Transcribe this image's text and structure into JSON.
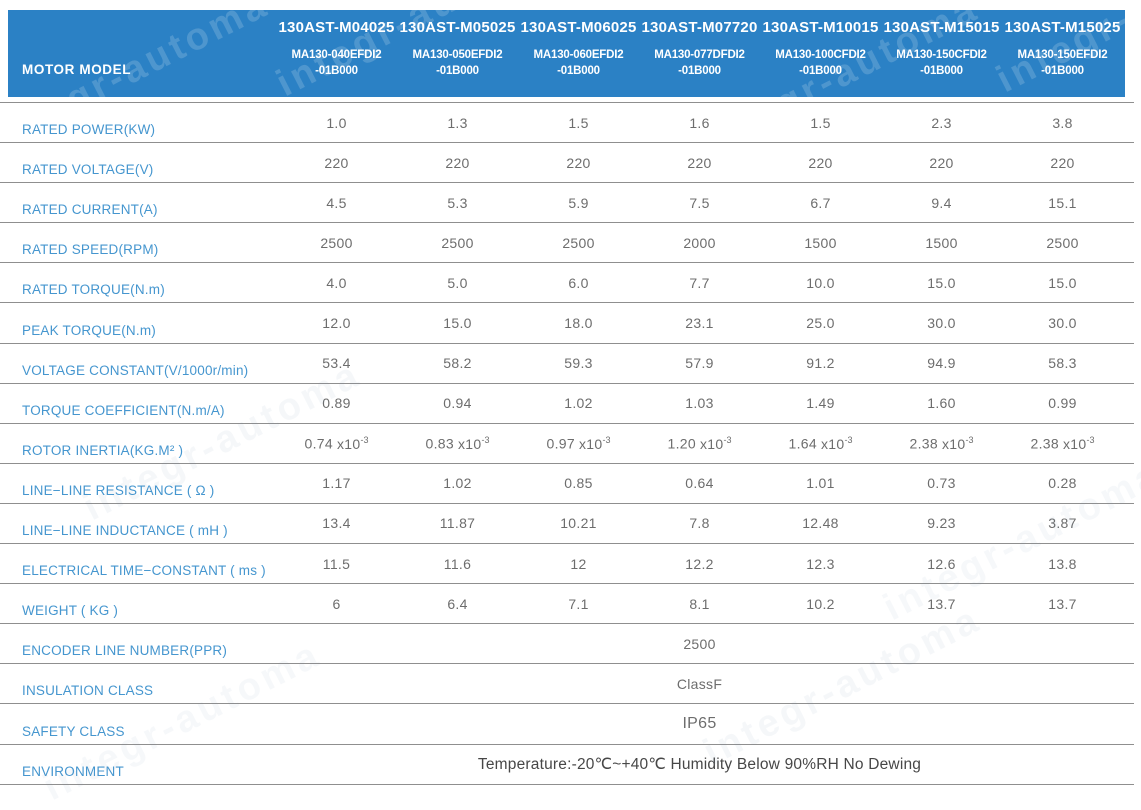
{
  "watermark": {
    "text": "integr-automa"
  },
  "colors": {
    "header_bg": "#2b81c5",
    "header_text": "#ffffff",
    "label_text": "#4596cf",
    "value_text": "#6d6d6d",
    "grid_line": "#8f8f8f"
  },
  "header": {
    "row_label": "MOTOR MODEL",
    "columns": [
      {
        "model": "130AST-M04025",
        "sub1": "MA130-040EFDI2",
        "sub2": "-01B000"
      },
      {
        "model": "130AST-M05025",
        "sub1": "MA130-050EFDI2",
        "sub2": "-01B000"
      },
      {
        "model": "130AST-M06025",
        "sub1": "MA130-060EFDI2",
        "sub2": "-01B000"
      },
      {
        "model": "130AST-M07720",
        "sub1": "MA130-077DFDI2",
        "sub2": "-01B000"
      },
      {
        "model": "130AST-M10015",
        "sub1": "MA130-100CFDI2",
        "sub2": "-01B000"
      },
      {
        "model": "130AST-M15015",
        "sub1": "MA130-150CFDI2",
        "sub2": "-01B000"
      },
      {
        "model": "130AST-M15025",
        "sub1": "MA130-150EFDI2",
        "sub2": "-01B000"
      }
    ]
  },
  "rows": [
    {
      "label": "RATED POWER(KW)",
      "values": [
        "1.0",
        "1.3",
        "1.5",
        "1.6",
        "1.5",
        "2.3",
        "3.8"
      ]
    },
    {
      "label": "RATED VOLTAGE(V)",
      "values": [
        "220",
        "220",
        "220",
        "220",
        "220",
        "220",
        "220"
      ]
    },
    {
      "label": "RATED CURRENT(A)",
      "values": [
        "4.5",
        "5.3",
        "5.9",
        "7.5",
        "6.7",
        "9.4",
        "15.1"
      ]
    },
    {
      "label": "RATED SPEED(RPM)",
      "values": [
        "2500",
        "2500",
        "2500",
        "2000",
        "1500",
        "1500",
        "2500"
      ]
    },
    {
      "label": "RATED TORQUE(N.m)",
      "values": [
        "4.0",
        "5.0",
        "6.0",
        "7.7",
        "10.0",
        "15.0",
        "15.0"
      ]
    },
    {
      "label": "PEAK TORQUE(N.m)",
      "values": [
        "12.0",
        "15.0",
        "18.0",
        "23.1",
        "25.0",
        "30.0",
        "30.0"
      ]
    },
    {
      "label": "VOLTAGE CONSTANT(V/1000r/min)",
      "values": [
        "53.4",
        "58.2",
        "59.3",
        "57.9",
        "91.2",
        "94.9",
        "58.3"
      ]
    },
    {
      "label": "TORQUE COEFFICIENT(N.m/A)",
      "values": [
        "0.89",
        "0.94",
        "1.02",
        "1.03",
        "1.49",
        "1.60",
        "0.99"
      ]
    },
    {
      "label": "ROTOR INERTIA(KG.M² )",
      "sci": true,
      "sci_mult": "x10",
      "sci_exp": "-3",
      "values": [
        "0.74",
        "0.83",
        "0.97",
        "1.20",
        "1.64",
        "2.38",
        "2.38"
      ]
    },
    {
      "label": "LINE−LINE RESISTANCE ( Ω )",
      "values": [
        "1.17",
        "1.02",
        "0.85",
        "0.64",
        "1.01",
        "0.73",
        "0.28"
      ]
    },
    {
      "label": "LINE−LINE INDUCTANCE ( mH )",
      "values": [
        "13.4",
        "11.87",
        "10.21",
        "7.8",
        "12.48",
        "9.23",
        "3.87"
      ]
    },
    {
      "label": "ELECTRICAL TIME−CONSTANT ( ms )",
      "values": [
        "11.5",
        "11.6",
        "12",
        "12.2",
        "12.3",
        "12.6",
        "13.8"
      ]
    },
    {
      "label": "WEIGHT ( KG )",
      "values": [
        "6",
        "6.4",
        "7.1",
        "8.1",
        "10.2",
        "13.7",
        "13.7"
      ]
    },
    {
      "label": "ENCODER LINE NUMBER(PPR)",
      "value": "2500"
    },
    {
      "label": "INSULATION CLASS",
      "value": "ClassF"
    },
    {
      "label": "SAFETY CLASS",
      "value": "IP65",
      "style": "large"
    },
    {
      "label": "ENVIRONMENT",
      "value": "Temperature:-20℃~+40℃  Humidity Below 90%RH No Dewing",
      "style": "env"
    }
  ]
}
